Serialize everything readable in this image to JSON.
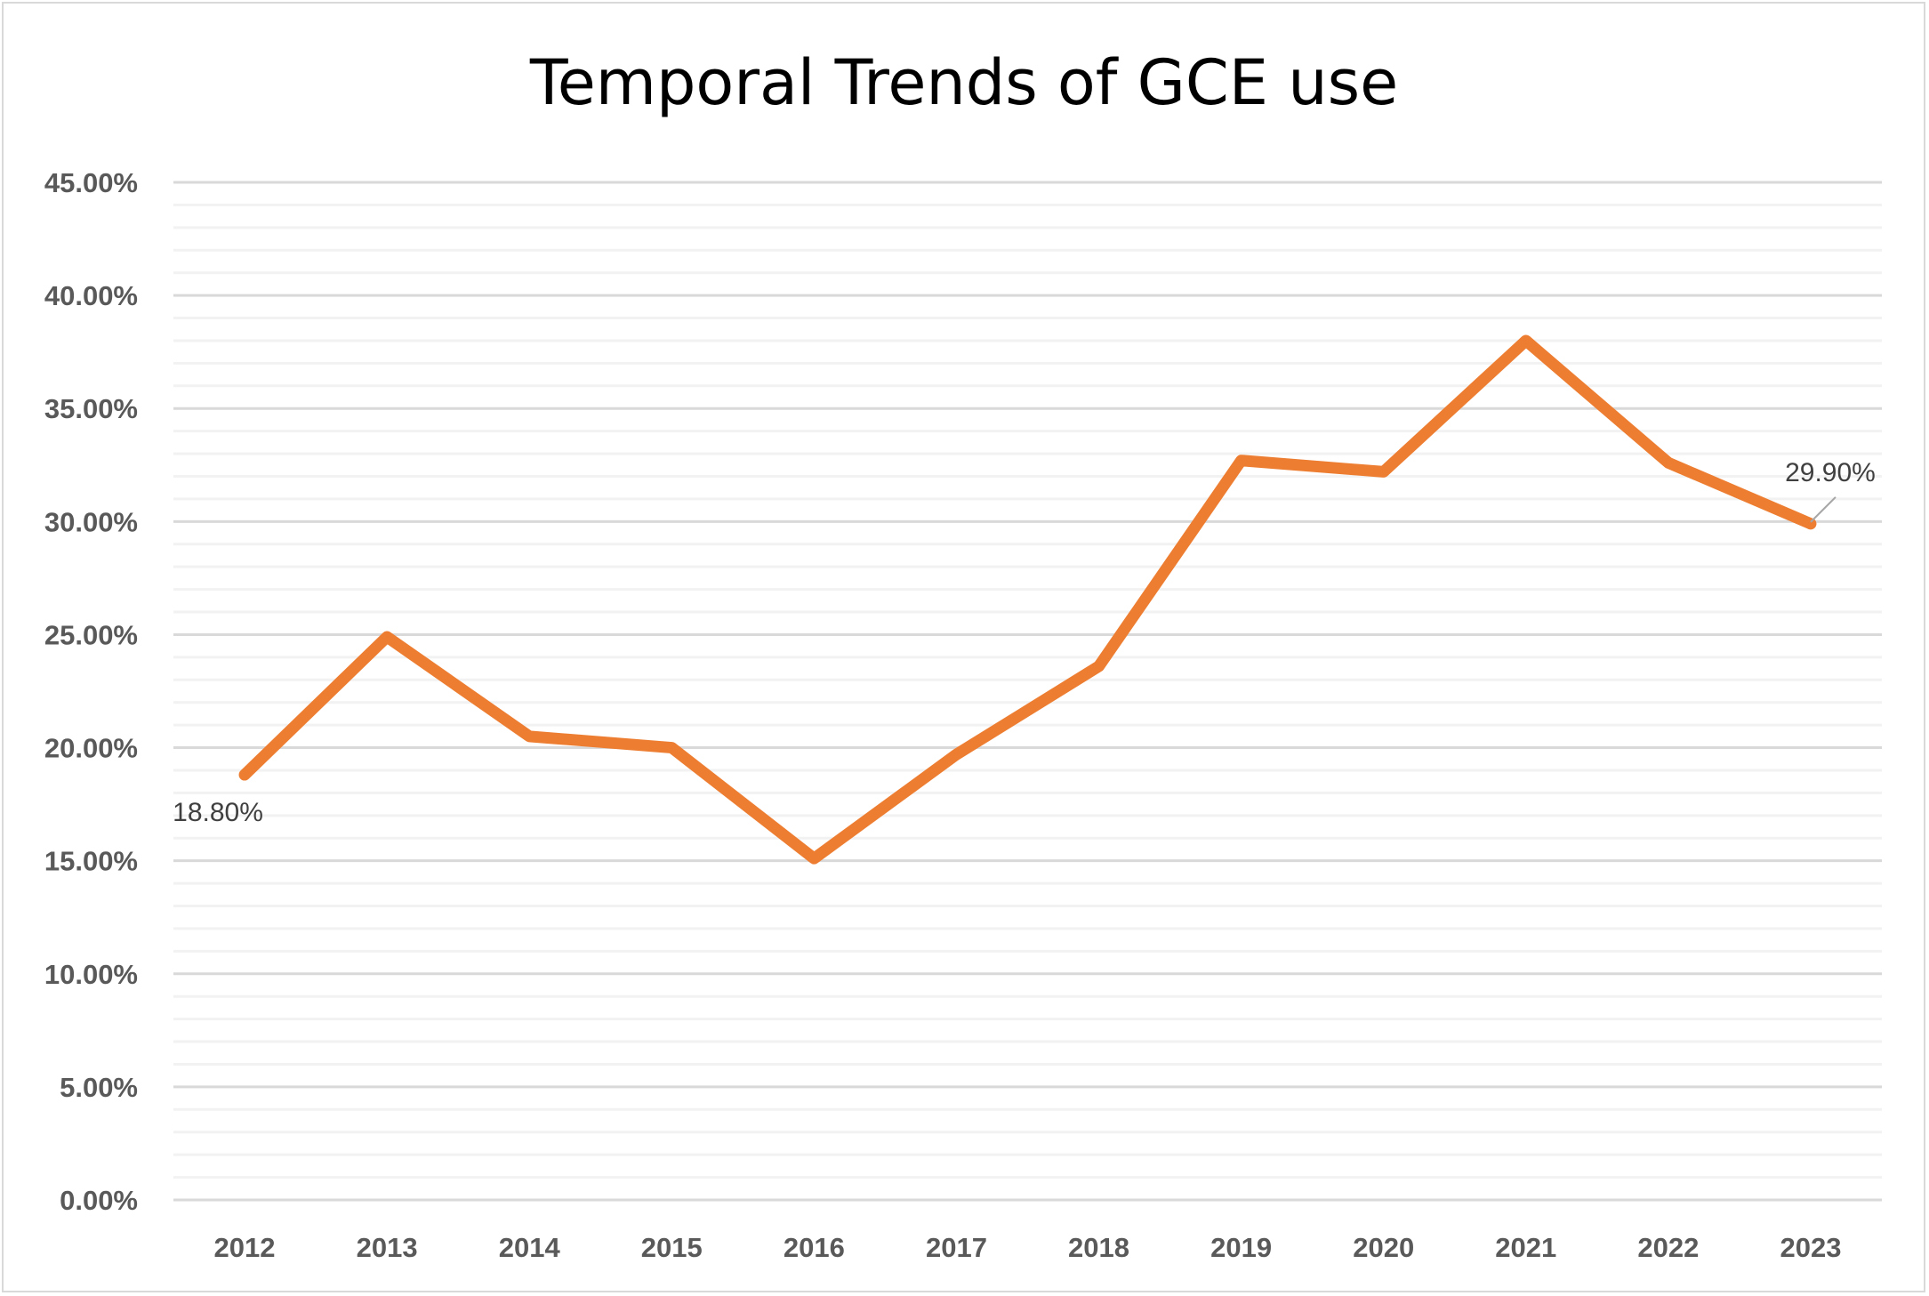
{
  "chart_data": {
    "type": "line",
    "title": "Temporal Trends of GCE use",
    "xlabel": "",
    "ylabel": "",
    "categories": [
      "2012",
      "2013",
      "2014",
      "2015",
      "2016",
      "2017",
      "2018",
      "2019",
      "2020",
      "2021",
      "2022",
      "2023"
    ],
    "series": [
      {
        "values": [
          18.8,
          24.9,
          20.5,
          20.0,
          15.1,
          19.7,
          23.6,
          32.7,
          32.2,
          38.0,
          32.6,
          29.9
        ],
        "color": "#ed7d31"
      }
    ],
    "data_labels": [
      {
        "category": "2012",
        "text": "18.80%"
      },
      {
        "category": "2023",
        "text": "29.90%"
      }
    ],
    "ylim": [
      0,
      45
    ],
    "y_ticks": [
      "0.00%",
      "5.00%",
      "10.00%",
      "15.00%",
      "20.00%",
      "25.00%",
      "30.00%",
      "35.00%",
      "40.00%",
      "45.00%"
    ],
    "y_major_step": 5,
    "y_minor_step": 1,
    "grid": true,
    "legend": "none"
  }
}
